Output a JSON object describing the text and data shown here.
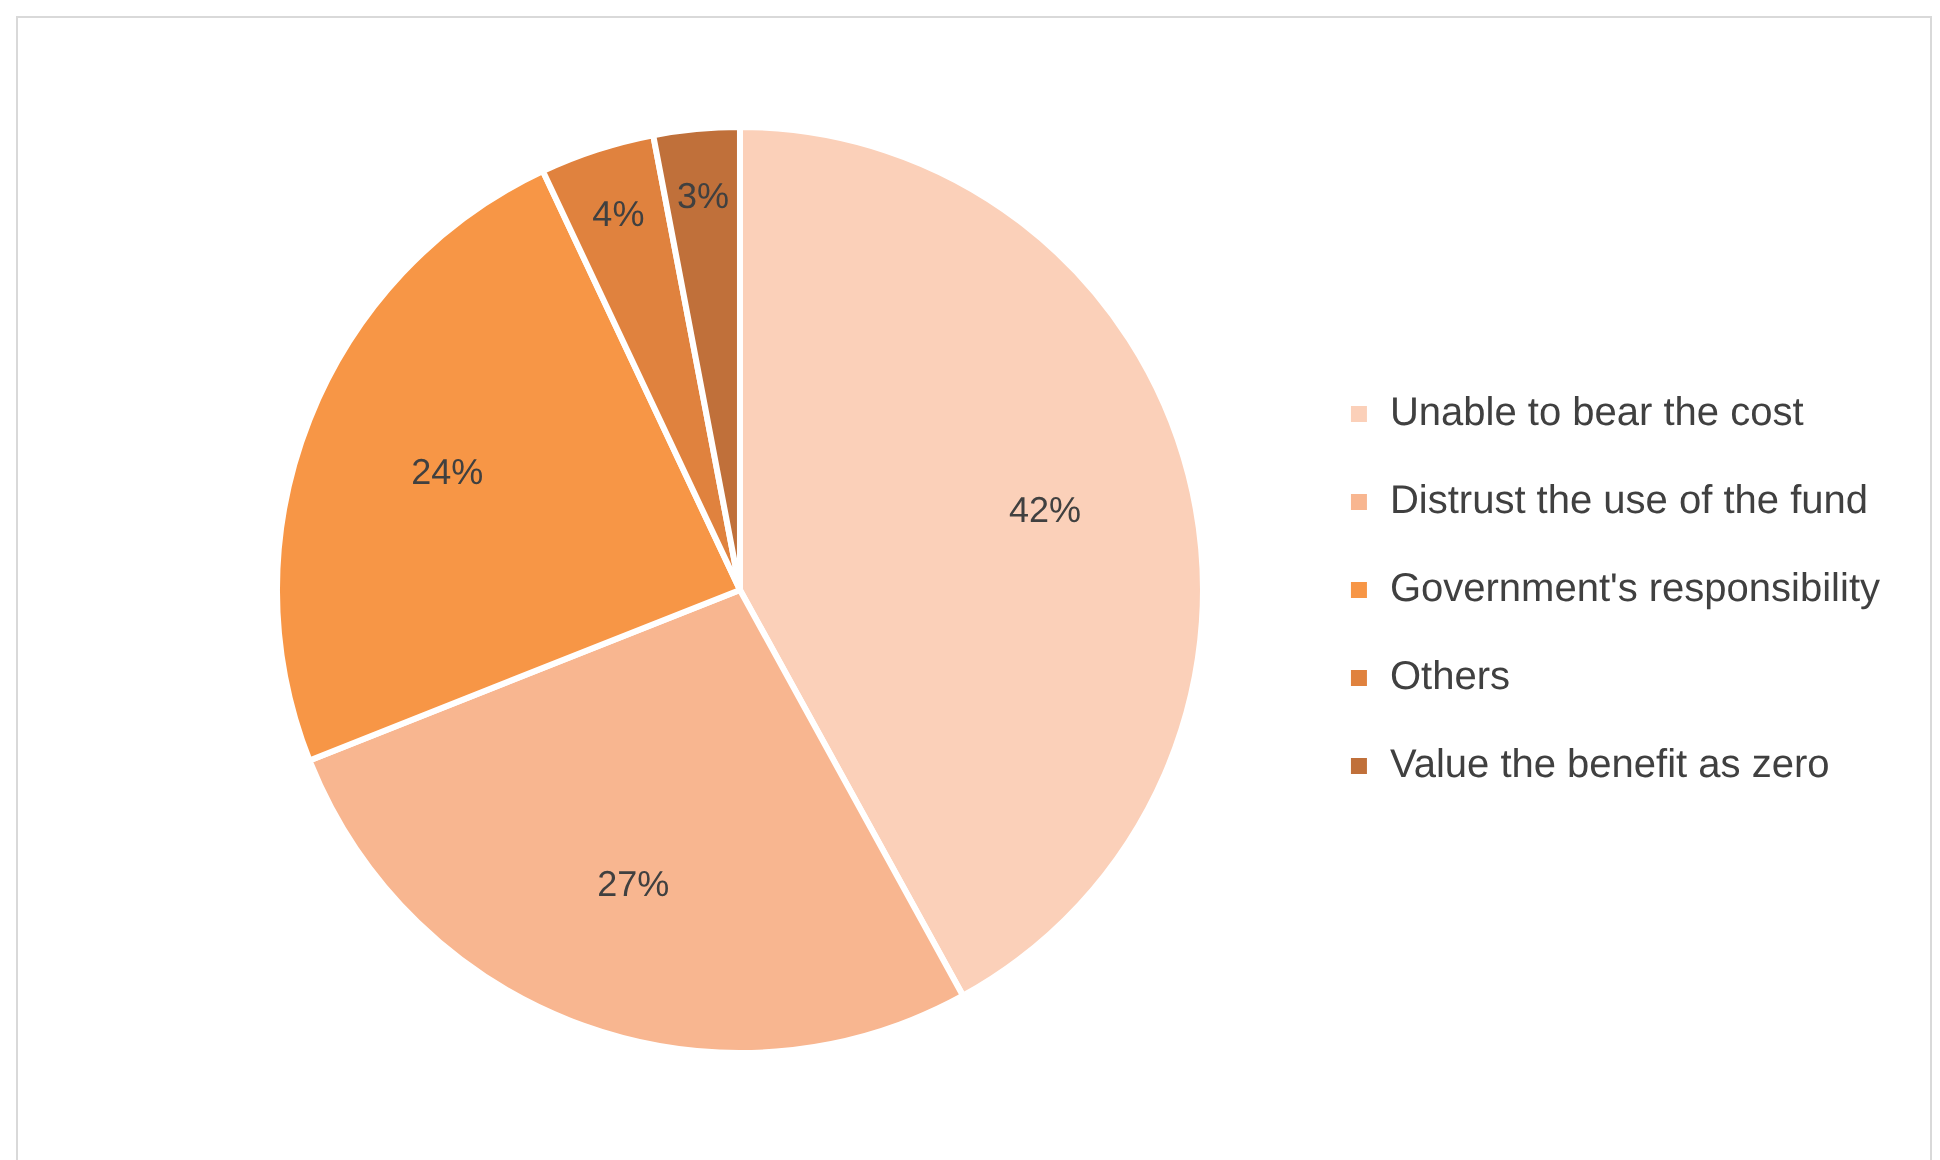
{
  "chart_data": {
    "type": "pie",
    "categories": [
      "Unable to bear the cost",
      "Distrust the use of the fund",
      "Government's responsibility",
      "Others",
      "Value the benefit as zero"
    ],
    "values": [
      42,
      27,
      24,
      4,
      3
    ],
    "colors": [
      "#fbd0b9",
      "#f8b690",
      "#f79646",
      "#e0823e",
      "#c0703a"
    ],
    "value_labels": [
      "42%",
      "27%",
      "24%",
      "4%",
      "3%"
    ],
    "legend": "right"
  }
}
